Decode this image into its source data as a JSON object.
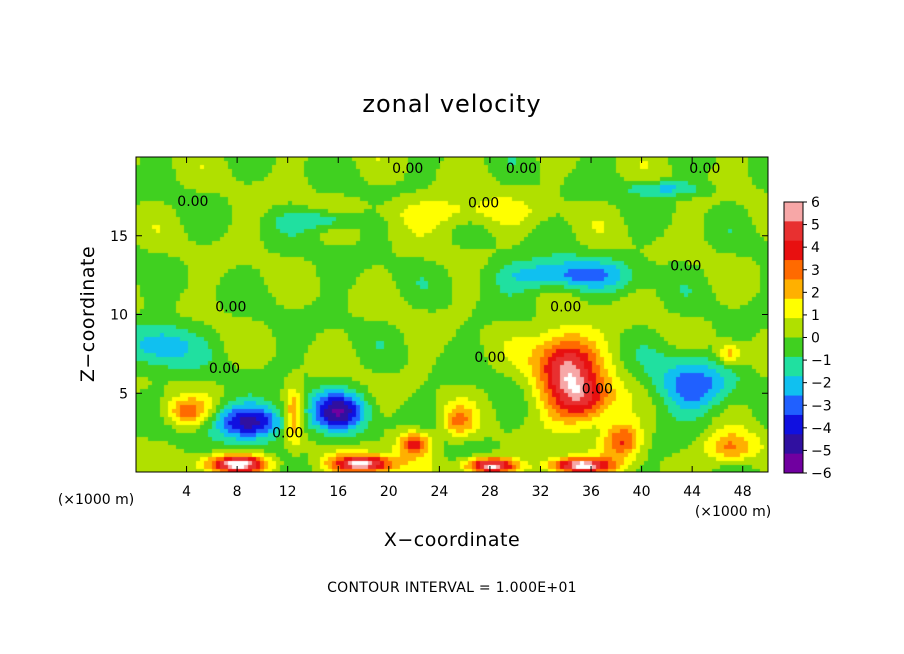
{
  "chart_data": {
    "type": "heatmap",
    "title": "zonal velocity",
    "xlabel": "X−coordinate",
    "ylabel": "Z−coordinate",
    "x_unit_left": "(×1000 m)",
    "x_unit_right": "(×1000 m)",
    "xlim": [
      0,
      50
    ],
    "ylim": [
      0,
      20
    ],
    "x_ticks": [
      4,
      8,
      12,
      16,
      20,
      24,
      28,
      32,
      36,
      40,
      44,
      48
    ],
    "y_ticks": [
      5,
      10,
      15
    ],
    "colorbar": {
      "min": -6,
      "max": 6,
      "ticks": [
        "6",
        "5",
        "4",
        "3",
        "2",
        "1",
        "0",
        "−1",
        "−2",
        "−3",
        "−4",
        "−5",
        "−6"
      ],
      "colors": [
        "#f7a7a7",
        "#e83030",
        "#e81010",
        "#ff6a00",
        "#ffb000",
        "#ffff00",
        "#b0e000",
        "#40d020",
        "#20e0a0",
        "#10c0f0",
        "#2060ff",
        "#1010e0",
        "#3010a0",
        "#7000a0"
      ]
    },
    "contour_label": "0.00",
    "contour_label_positions": [
      [
        21.5,
        19.3
      ],
      [
        30.5,
        19.3
      ],
      [
        45,
        19.3
      ],
      [
        4.5,
        17.2
      ],
      [
        27.5,
        17.1
      ],
      [
        43.5,
        13.1
      ],
      [
        7.5,
        10.5
      ],
      [
        34,
        10.5
      ],
      [
        7,
        6.6
      ],
      [
        28,
        7.3
      ],
      [
        36.5,
        5.3
      ],
      [
        12,
        2.5
      ]
    ],
    "field_features": [
      {
        "x": 34,
        "y": 6.8,
        "v": 5.0,
        "sx": 2.5,
        "sy": 2.2
      },
      {
        "x": 35.5,
        "y": 4.5,
        "v": 4.0,
        "sx": 2.5,
        "sy": 1.5
      },
      {
        "x": 38.5,
        "y": 2.0,
        "v": 3.5,
        "sx": 1.5,
        "sy": 1.2
      },
      {
        "x": 9,
        "y": 3.2,
        "v": -4.5,
        "sx": 3.0,
        "sy": 1.1
      },
      {
        "x": 16,
        "y": 3.8,
        "v": -4.5,
        "sx": 2.2,
        "sy": 1.3
      },
      {
        "x": 22,
        "y": 1.8,
        "v": 4.0,
        "sx": 1.3,
        "sy": 0.8
      },
      {
        "x": 12.5,
        "y": 3.5,
        "v": 3.0,
        "sx": 0.7,
        "sy": 1.8
      },
      {
        "x": 4,
        "y": 3.8,
        "v": 3.0,
        "sx": 1.8,
        "sy": 0.9
      },
      {
        "x": 34,
        "y": 12.5,
        "v": -3.0,
        "sx": 5.0,
        "sy": 1.0
      },
      {
        "x": 44,
        "y": 5.5,
        "v": -3.0,
        "sx": 3.0,
        "sy": 1.8
      },
      {
        "x": 2,
        "y": 8,
        "v": -2.5,
        "sx": 2.5,
        "sy": 1.5
      },
      {
        "x": 25.5,
        "y": 3.2,
        "v": 2.5,
        "sx": 1.2,
        "sy": 1.0
      },
      {
        "x": 8,
        "y": 0.5,
        "v": 6.0,
        "sx": 2.5,
        "sy": 0.6
      },
      {
        "x": 18,
        "y": 0.5,
        "v": 6.0,
        "sx": 2.5,
        "sy": 0.6
      },
      {
        "x": 28,
        "y": 0.4,
        "v": 6.0,
        "sx": 2.0,
        "sy": 0.5
      },
      {
        "x": 35,
        "y": 0.4,
        "v": 6.0,
        "sx": 2.5,
        "sy": 0.5
      },
      {
        "x": 47,
        "y": 1.5,
        "v": 3.0,
        "sx": 2.0,
        "sy": 1.0
      },
      {
        "x": 47,
        "y": 7.5,
        "v": 2.5,
        "sx": 1.0,
        "sy": 0.7
      },
      {
        "x": 25,
        "y": 16.5,
        "v": 1.5,
        "sx": 6.0,
        "sy": 1.0
      },
      {
        "x": 15,
        "y": 16.0,
        "v": -2.0,
        "sx": 3.0,
        "sy": 0.6
      },
      {
        "x": 42,
        "y": 18.0,
        "v": -2.0,
        "sx": 3.0,
        "sy": 0.5
      }
    ],
    "grid": false,
    "legend": "colorbar-right"
  },
  "footer": {
    "contour_interval": "CONTOUR INTERVAL = 1.000E+01"
  }
}
